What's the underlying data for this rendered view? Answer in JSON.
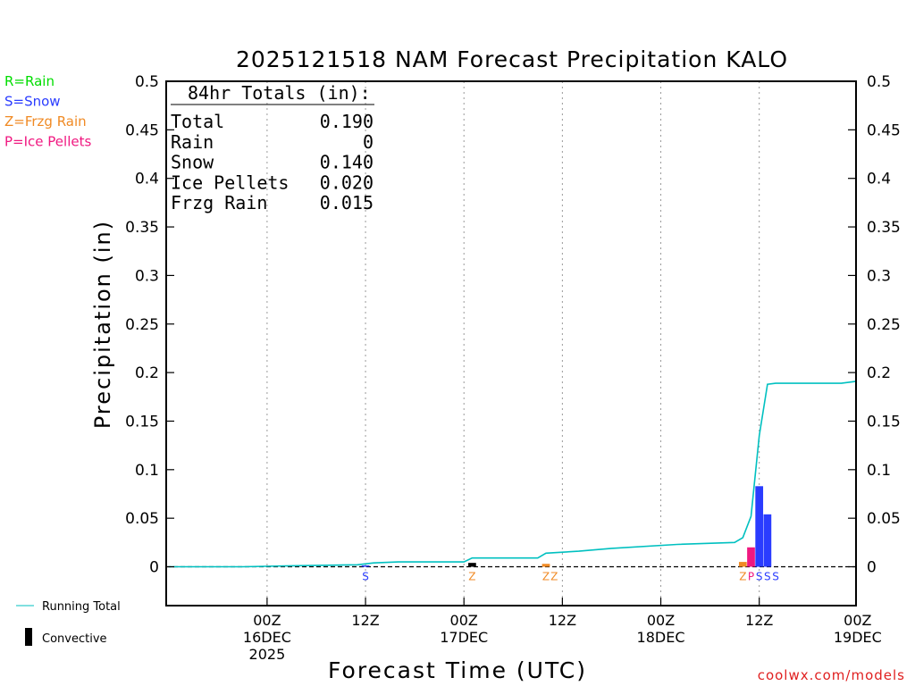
{
  "chart_data": {
    "type": "bar",
    "title": "2025121518 NAM Forecast Precipitation KALO",
    "ylabel": "Precipitation (in)",
    "xlabel": "Forecast Time (UTC)",
    "ylim": [
      -0.04,
      0.5
    ],
    "yticks": [
      {
        "v": 0.5,
        "label": "0.5"
      },
      {
        "v": 0.45,
        "label": "0.45"
      },
      {
        "v": 0.4,
        "label": "0.4"
      },
      {
        "v": 0.35,
        "label": "0.35"
      },
      {
        "v": 0.3,
        "label": "0.3"
      },
      {
        "v": 0.25,
        "label": "0.25"
      },
      {
        "v": 0.2,
        "label": "0.2"
      },
      {
        "v": 0.15,
        "label": "0.15"
      },
      {
        "v": 0.1,
        "label": "0.1"
      },
      {
        "v": 0.05,
        "label": "0.05"
      },
      {
        "v": 0,
        "label": "0"
      }
    ],
    "xlim_hours": [
      -6.3,
      77.8
    ],
    "xticks": [
      {
        "hour": 6,
        "lines": [
          "00Z",
          "16DEC",
          "2025"
        ]
      },
      {
        "hour": 18,
        "lines": [
          "12Z"
        ]
      },
      {
        "hour": 30,
        "lines": [
          "00Z",
          "17DEC"
        ]
      },
      {
        "hour": 42,
        "lines": [
          "12Z"
        ]
      },
      {
        "hour": 54,
        "lines": [
          "00Z",
          "18DEC"
        ]
      },
      {
        "hour": 66,
        "lines": [
          "12Z"
        ]
      },
      {
        "hour": 78,
        "lines": [
          "00Z",
          "19DEC"
        ]
      }
    ],
    "legend": [
      {
        "text": "R=Rain",
        "color": "#00dd00"
      },
      {
        "text": "S=Snow",
        "color": "#2a3cff"
      },
      {
        "text": "Z=Frzg Rain",
        "color": "#f08a24"
      },
      {
        "text": "P=Ice Pellets",
        "color": "#f01880"
      }
    ],
    "totals": {
      "heading": "84hr Totals (in):",
      "rows": [
        {
          "label": "Total",
          "value": "0.190"
        },
        {
          "label": "Rain",
          "value": "0"
        },
        {
          "label": "Snow",
          "value": "0.140"
        },
        {
          "label": "Ice Pellets",
          "value": "0.020"
        },
        {
          "label": "Frzg Rain",
          "value": "0.015"
        }
      ]
    },
    "bars": [
      {
        "hour": 18,
        "value": 0.001,
        "type": "snow"
      },
      {
        "hour": 31,
        "value": 0.004,
        "type": "convective"
      },
      {
        "hour": 40,
        "value": 0.003,
        "type": "frzg"
      },
      {
        "hour": 64,
        "value": 0.005,
        "type": "frzg"
      },
      {
        "hour": 65,
        "value": 0.02,
        "type": "ice"
      },
      {
        "hour": 66,
        "value": 0.083,
        "type": "snow"
      },
      {
        "hour": 67,
        "value": 0.054,
        "type": "snow"
      }
    ],
    "ptype_markers": [
      {
        "hour": 18,
        "letter": "S",
        "type": "snow"
      },
      {
        "hour": 31,
        "letter": "Z",
        "type": "frzg"
      },
      {
        "hour": 40,
        "letter": "Z",
        "type": "frzg"
      },
      {
        "hour": 41,
        "letter": "Z",
        "type": "frzg"
      },
      {
        "hour": 64,
        "letter": "Z",
        "type": "frzg"
      },
      {
        "hour": 65,
        "letter": "P",
        "type": "ice"
      },
      {
        "hour": 66,
        "letter": "S",
        "type": "snow"
      },
      {
        "hour": 67,
        "letter": "S",
        "type": "snow"
      },
      {
        "hour": 68,
        "letter": "S",
        "type": "snow"
      }
    ],
    "running_total": [
      {
        "hour": -6,
        "value": 0
      },
      {
        "hour": 3,
        "value": 0
      },
      {
        "hour": 9,
        "value": 0.001
      },
      {
        "hour": 17,
        "value": 0.002
      },
      {
        "hour": 19,
        "value": 0.004
      },
      {
        "hour": 22,
        "value": 0.005
      },
      {
        "hour": 30,
        "value": 0.005
      },
      {
        "hour": 31,
        "value": 0.009
      },
      {
        "hour": 39,
        "value": 0.009
      },
      {
        "hour": 40,
        "value": 0.014
      },
      {
        "hour": 44,
        "value": 0.016
      },
      {
        "hour": 48,
        "value": 0.019
      },
      {
        "hour": 56,
        "value": 0.023
      },
      {
        "hour": 63,
        "value": 0.025
      },
      {
        "hour": 64,
        "value": 0.03
      },
      {
        "hour": 65,
        "value": 0.052
      },
      {
        "hour": 66,
        "value": 0.135
      },
      {
        "hour": 67,
        "value": 0.188
      },
      {
        "hour": 68,
        "value": 0.189
      },
      {
        "hour": 76,
        "value": 0.189
      },
      {
        "hour": 77.8,
        "value": 0.191
      }
    ],
    "colors": {
      "snow": "#2a3cff",
      "frzg": "#f08a24",
      "ice": "#f01880",
      "rain": "#00dd00",
      "convective": "#000000",
      "running": "#00c0c0",
      "credit": "#e02020"
    },
    "bottom_legend": {
      "running_total": "Running Total",
      "convective": "Convective"
    },
    "credit": "coolwx.com/models"
  }
}
